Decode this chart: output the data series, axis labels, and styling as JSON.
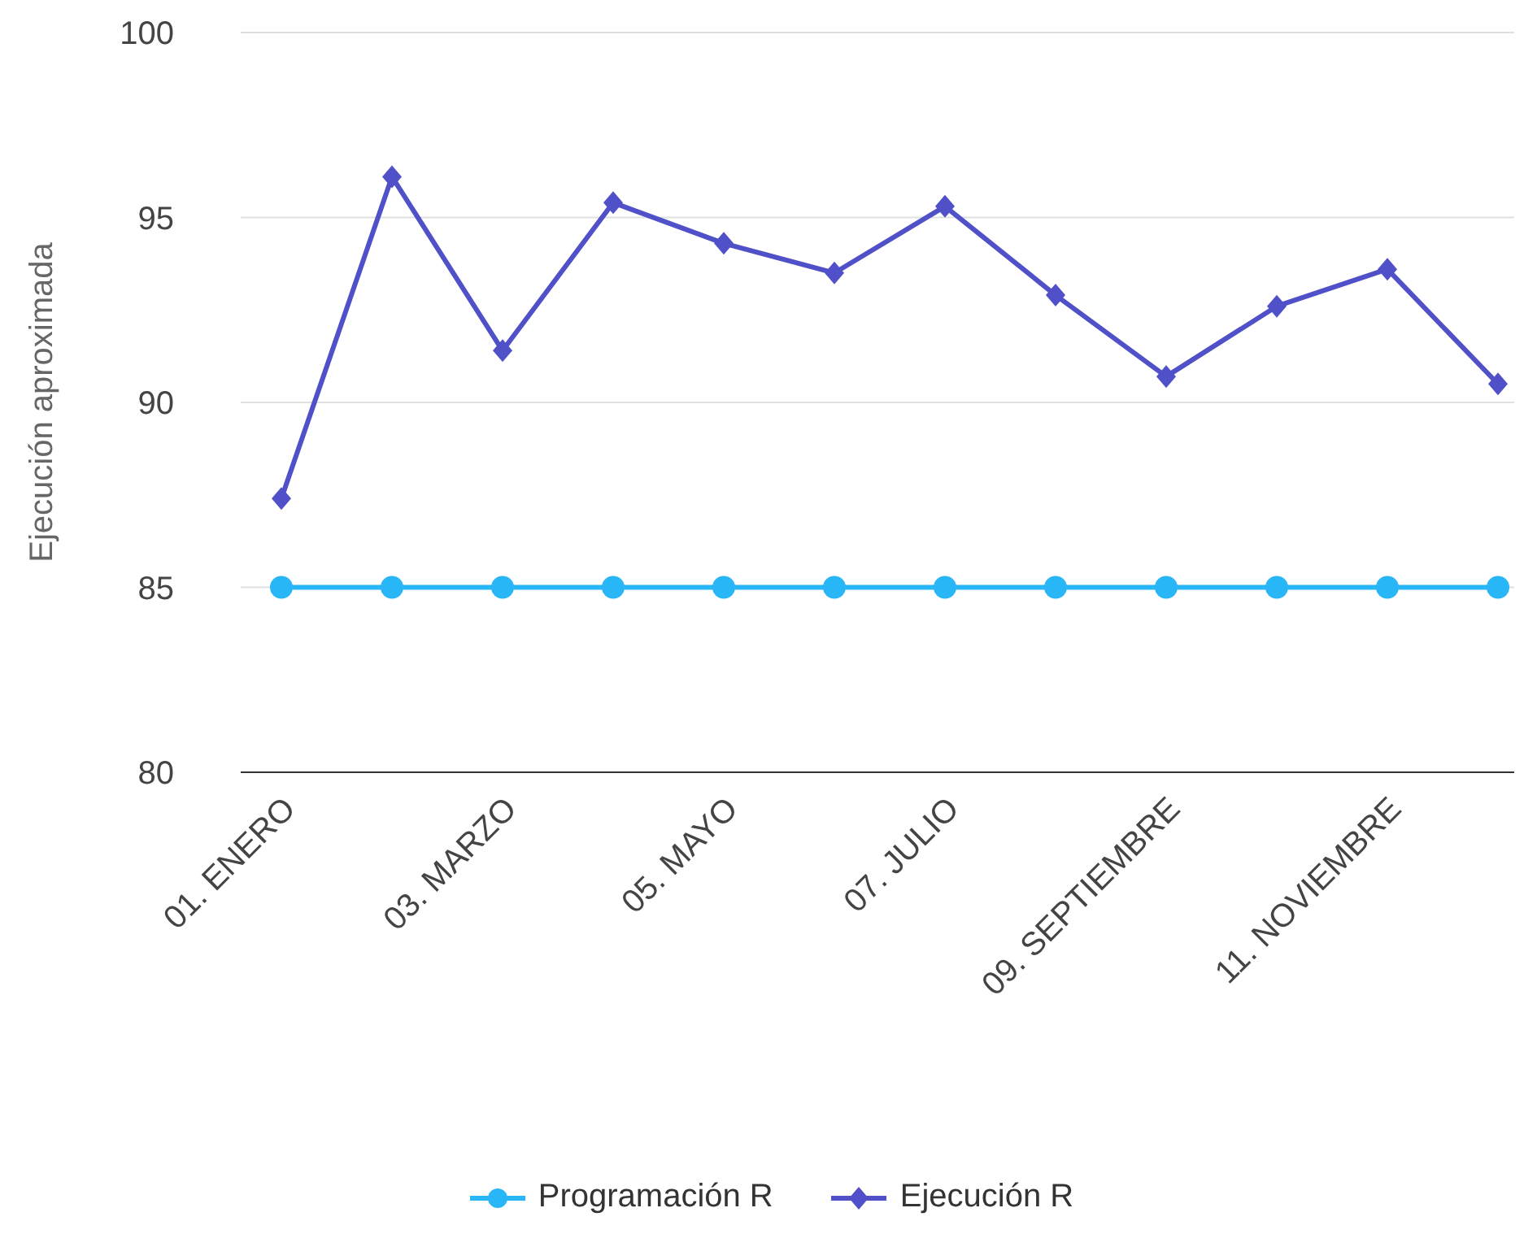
{
  "chart_data": {
    "type": "line",
    "ylabel": "Ejecución aproximada",
    "categories": [
      "01. ENERO",
      null,
      "03. MARZO",
      null,
      "05. MAYO",
      null,
      "07. JULIO",
      null,
      "09. SEPTIEMBRE",
      null,
      "11. NOVIEMBRE",
      null
    ],
    "series": [
      {
        "name": "Programación R",
        "color": "#29b6f6",
        "marker": "circle",
        "values": [
          85,
          85,
          85,
          85,
          85,
          85,
          85,
          85,
          85,
          85,
          85,
          85
        ]
      },
      {
        "name": "Ejecución R",
        "color": "#5050c8",
        "marker": "diamond",
        "values": [
          87.4,
          96.1,
          91.4,
          95.4,
          94.3,
          93.5,
          95.3,
          92.9,
          90.7,
          92.6,
          93.6,
          90.5
        ]
      }
    ],
    "ylim": [
      80,
      100
    ],
    "yticks": [
      80,
      85,
      90,
      95,
      100
    ],
    "grid": "y",
    "legend": "bottom",
    "line_style": "solid"
  }
}
